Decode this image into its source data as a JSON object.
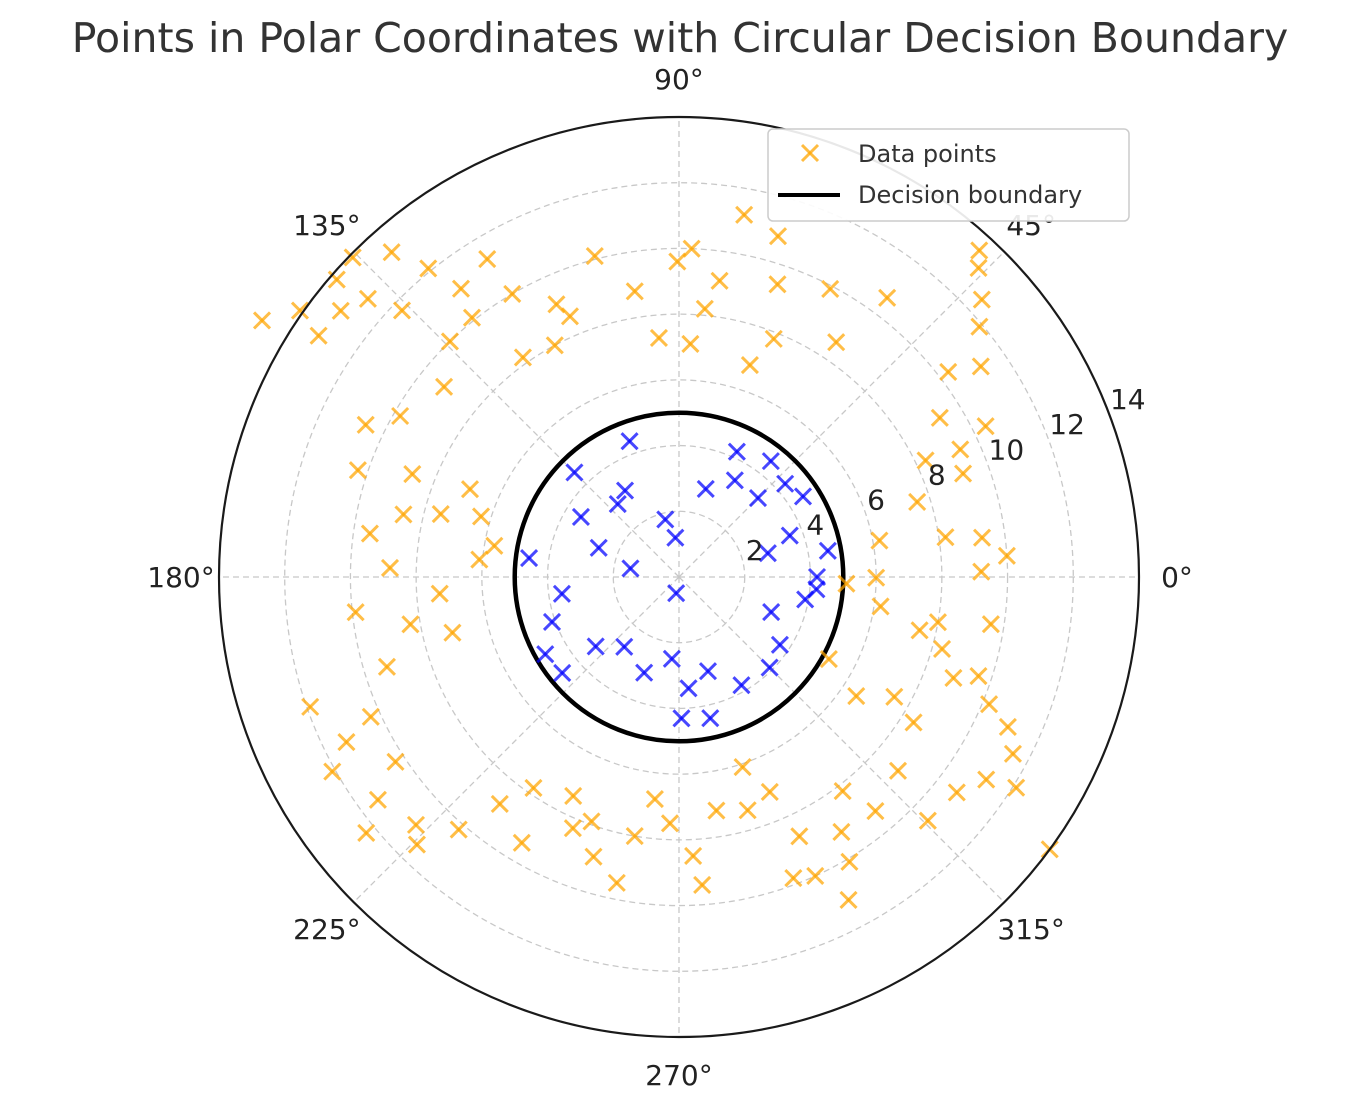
{
  "chart_data": {
    "type": "scatter",
    "projection": "polar",
    "title": "Points in Polar Coordinates with Circular Decision Boundary",
    "angle_ticks": [
      "0°",
      "45°",
      "90°",
      "135°",
      "180°",
      "225°",
      "270°",
      "315°"
    ],
    "radial_ticks": [
      "2",
      "4",
      "6",
      "8",
      "10",
      "12",
      "14"
    ],
    "rlim": [
      0,
      14
    ],
    "grid": true,
    "legend": {
      "placement": "top-right",
      "entries": [
        "Data points",
        "Decision boundary"
      ]
    },
    "decision_boundary": {
      "radius": 5,
      "color": "#000000"
    },
    "colors": {
      "outside": "#FFA500",
      "inside": "#0000FF"
    },
    "series": [
      {
        "name": "Data points",
        "color": "#FFA500",
        "points": [
          [
            148.4,
            14.9
          ],
          [
            144.9,
            14.1
          ],
          [
            146.2,
            13.2
          ],
          [
            139.0,
            13.8
          ],
          [
            141.8,
            13.1
          ],
          [
            135.6,
            13.9
          ],
          [
            138.2,
            12.7
          ],
          [
            131.5,
            13.2
          ],
          [
            129.1,
            12.1
          ],
          [
            127.1,
            11.0
          ],
          [
            128.6,
            10.1
          ],
          [
            136.1,
            11.7
          ],
          [
            134.2,
            10.0
          ],
          [
            141.0,
            9.2
          ],
          [
            121.1,
            11.3
          ],
          [
            114.2,
            9.1
          ],
          [
            112.7,
            8.6
          ],
          [
            120.5,
            10.0
          ],
          [
            118.2,
            8.0
          ],
          [
            125.4,
            8.2
          ],
          [
            104.7,
            10.1
          ],
          [
            98.8,
            8.8
          ],
          [
            94.8,
            7.3
          ],
          [
            90.3,
            9.6
          ],
          [
            87.8,
            10.0
          ],
          [
            82.2,
            9.1
          ],
          [
            79.8,
            11.2
          ],
          [
            73.8,
            10.8
          ],
          [
            71.4,
            9.4
          ],
          [
            84.5,
            8.2
          ],
          [
            87.2,
            7.1
          ],
          [
            71.5,
            6.8
          ],
          [
            68.3,
            7.8
          ],
          [
            62.3,
            9.9
          ],
          [
            56.2,
            8.6
          ],
          [
            53.3,
            10.6
          ],
          [
            47.4,
            13.5
          ],
          [
            45.9,
            13.1
          ],
          [
            42.5,
            12.5
          ],
          [
            39.8,
            11.9
          ],
          [
            34.9,
            11.2
          ],
          [
            37.3,
            10.3
          ],
          [
            31.4,
            9.3
          ],
          [
            26.2,
            10.4
          ],
          [
            24.4,
            9.4
          ],
          [
            25.3,
            8.3
          ],
          [
            20.0,
            9.2
          ],
          [
            17.5,
            7.6
          ],
          [
            10.3,
            6.2
          ],
          [
            8.5,
            8.2
          ],
          [
            7.4,
            9.3
          ],
          [
            3.7,
            10.0
          ],
          [
            1.0,
            9.2
          ],
          [
            -0.2,
            6.0
          ],
          [
            -2.3,
            5.1
          ],
          [
            -8.3,
            6.2
          ],
          [
            -9.9,
            8.0
          ],
          [
            -8.6,
            9.6
          ],
          [
            -12.5,
            7.5
          ],
          [
            -15.3,
            8.3
          ],
          [
            -18.3,
            9.6
          ],
          [
            -20.2,
            8.9
          ],
          [
            -24.5,
            11.0
          ],
          [
            -22.3,
            10.2
          ],
          [
            -27.9,
            11.5
          ],
          [
            -32.0,
            12.1
          ],
          [
            -36.3,
            14.0
          ],
          [
            -33.4,
            11.2
          ],
          [
            -37.8,
            10.7
          ],
          [
            -31.8,
            8.4
          ],
          [
            -28.7,
            5.2
          ],
          [
            -29.1,
            7.5
          ],
          [
            -33.9,
            6.5
          ],
          [
            -41.5,
            8.9
          ],
          [
            -44.4,
            10.6
          ],
          [
            -50.0,
            9.3
          ],
          [
            -52.6,
            8.2
          ],
          [
            -57.5,
            9.2
          ],
          [
            -59.1,
            10.1
          ],
          [
            -62.3,
            11.1
          ],
          [
            -65.5,
            10.0
          ],
          [
            -65.1,
            8.7
          ],
          [
            -67.1,
            7.1
          ],
          [
            -71.5,
            6.1
          ],
          [
            -69.2,
            9.8
          ],
          [
            -73.6,
            7.4
          ],
          [
            -80.9,
            7.2
          ],
          [
            -85.7,
            9.4
          ],
          [
            -87.1,
            8.5
          ],
          [
            -92.1,
            7.5
          ],
          [
            -96.2,
            6.8
          ],
          [
            -99.7,
            8.0
          ],
          [
            -101.5,
            9.5
          ],
          [
            -107.0,
            8.9
          ],
          [
            -109.7,
            7.9
          ],
          [
            -112.9,
            8.3
          ],
          [
            -115.8,
            7.4
          ],
          [
            -120.6,
            9.4
          ],
          [
            -124.6,
            7.8
          ],
          [
            -128.3,
            8.8
          ],
          [
            -131.1,
            10.2
          ],
          [
            -134.4,
            11.4
          ],
          [
            -136.7,
            11.0
          ],
          [
            -140.7,
            12.3
          ],
          [
            -143.5,
            11.4
          ],
          [
            -146.9,
            10.3
          ],
          [
            -150.7,
            12.1
          ],
          [
            -153.6,
            11.3
          ],
          [
            -155.6,
            10.3
          ],
          [
            -160.6,
            11.9
          ],
          [
            -162.9,
            9.3
          ],
          [
            -166.2,
            7.1
          ],
          [
            -170.0,
            8.3
          ],
          [
            -173.8,
            9.9
          ],
          [
            -176.0,
            7.3
          ],
          [
            178.2,
            8.8
          ],
          [
            172.0,
            9.5
          ],
          [
            167.2,
            8.6
          ],
          [
            165.2,
            7.5
          ],
          [
            161.6,
            10.3
          ],
          [
            158.9,
            8.7
          ],
          [
            154.1,
            10.6
          ],
          [
            150.0,
            9.8
          ],
          [
            157.2,
            6.9
          ],
          [
            163.0,
            6.3
          ],
          [
            170.4,
            5.7
          ],
          [
            175.0,
            6.1
          ]
        ]
      },
      {
        "name": "",
        "color": "#0000FF",
        "points": [
          [
            0.0,
            4.2
          ],
          [
            10.0,
            4.6
          ],
          [
            20.5,
            3.6
          ],
          [
            33.0,
            4.5
          ],
          [
            41.3,
            4.3
          ],
          [
            51.6,
            4.5
          ],
          [
            60.0,
            3.4
          ],
          [
            73.1,
            2.8
          ],
          [
            95.3,
            1.2
          ],
          [
            103.4,
            1.8
          ],
          [
            122.0,
            3.1
          ],
          [
            135.0,
            4.5
          ],
          [
            148.5,
            3.5
          ],
          [
            160.0,
            2.6
          ],
          [
            172.8,
            4.6
          ],
          [
            -171.8,
            3.6
          ],
          [
            -160.5,
            4.1
          ],
          [
            -150.0,
            4.7
          ],
          [
            -140.2,
            3.3
          ],
          [
            -128.1,
            2.7
          ],
          [
            -110.0,
            3.1
          ],
          [
            -95.0,
            2.5
          ],
          [
            -85.1,
            3.4
          ],
          [
            -72.9,
            3.0
          ],
          [
            -60.0,
            3.8
          ],
          [
            -45.0,
            3.9
          ],
          [
            -33.9,
            3.7
          ],
          [
            -20.8,
            3.0
          ],
          [
            -10.1,
            3.9
          ],
          [
            -5.1,
            4.2
          ],
          [
            15.0,
            2.8
          ],
          [
            -100.0,
            0.5
          ],
          [
            170.0,
            1.5
          ],
          [
            -77.5,
            4.4
          ],
          [
            65.2,
            4.2
          ],
          [
            45.0,
            3.4
          ],
          [
            -140.6,
            4.6
          ],
          [
            -89.0,
            4.3
          ],
          [
            110.0,
            4.4
          ],
          [
            130.0,
            2.9
          ]
        ]
      }
    ]
  }
}
